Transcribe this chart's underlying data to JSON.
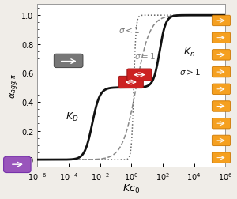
{
  "xlabel": "$Kc_0$",
  "ylabel": "$\\alpha_{agg,\\pi}$",
  "ylim": [
    -0.05,
    1.08
  ],
  "background_color": "#f0ede8",
  "plot_bg": "#ffffff",
  "KD_label": "$K_D$",
  "Kn_label": "$K_n$",
  "sigma_gt1_label": "$\\sigma > 1$",
  "sigma_eq1_label": "$\\sigma = 1$",
  "sigma_lt1_label": "$\\sigma < 1$",
  "curve_main_color": "#111111",
  "curve_eq1_color": "#888888",
  "curve_lt1_color": "#666666",
  "purple_color": "#9955bb",
  "purple_edge": "#7733aa",
  "red_color": "#cc2222",
  "red_edge": "#991111",
  "orange_color": "#f5a020",
  "orange_edge": "#cc7700"
}
